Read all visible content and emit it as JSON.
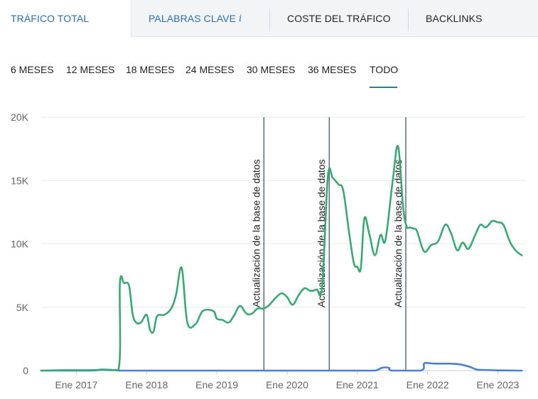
{
  "tabs": [
    {
      "label": "TRÁFICO TOTAL",
      "info": "",
      "active": true
    },
    {
      "label": "PALABRAS CLAVE",
      "info": "i",
      "active": false
    },
    {
      "label": "COSTE DEL TRÁFICO",
      "info": "",
      "active": false
    },
    {
      "label": "BACKLINKS",
      "info": "",
      "active": false
    }
  ],
  "periods": [
    "6 MESES",
    "12 MESES",
    "18 MESES",
    "24 MESES",
    "30 MESES",
    "36 MESES",
    "TODO"
  ],
  "selected_period": "TODO",
  "colors": {
    "accent": "#2d6fa6",
    "series_total": "#3aa876",
    "series_secondary": "#4b7fd6",
    "grid": "#e6e9ec",
    "annotation": "#3a4a5a"
  },
  "chart_data": {
    "type": "line",
    "title": "",
    "xlabel": "",
    "ylabel": "",
    "ylim": [
      0,
      20000
    ],
    "y_ticks": [
      0,
      5000,
      10000,
      15000,
      20000
    ],
    "y_tick_labels": [
      "0",
      "5K",
      "10K",
      "15K",
      "20K"
    ],
    "x_tick_labels": [
      "Ene 2017",
      "Ene 2018",
      "Ene 2019",
      "Ene 2020",
      "Ene 2021",
      "Ene 2022",
      "Ene 2023"
    ],
    "x_ticks": [
      2017.0,
      2018.0,
      2019.0,
      2020.0,
      2021.0,
      2022.0,
      2023.0
    ],
    "xlim": [
      2016.5,
      2023.4
    ],
    "grid": true,
    "annotations": [
      {
        "x": 2019.67,
        "label": "Actualización de la base de datos"
      },
      {
        "x": 2020.6,
        "label": "Actualización de la base de datos"
      },
      {
        "x": 2021.69,
        "label": "Actualización de la base de datos"
      }
    ],
    "series": [
      {
        "name": "",
        "color": "#3aa876",
        "x": [
          2016.5,
          2016.8,
          2017.1,
          2017.35,
          2017.6,
          2017.62,
          2017.68,
          2017.75,
          2017.8,
          2017.85,
          2017.92,
          2018.0,
          2018.05,
          2018.1,
          2018.15,
          2018.25,
          2018.35,
          2018.42,
          2018.5,
          2018.58,
          2018.7,
          2018.8,
          2018.95,
          2019.0,
          2019.08,
          2019.17,
          2019.25,
          2019.33,
          2019.42,
          2019.5,
          2019.58,
          2019.67,
          2019.75,
          2019.83,
          2019.92,
          2020.0,
          2020.08,
          2020.17,
          2020.25,
          2020.33,
          2020.42,
          2020.5,
          2020.58,
          2020.65,
          2020.73,
          2020.8,
          2020.88,
          2020.95,
          2021.0,
          2021.05,
          2021.1,
          2021.17,
          2021.25,
          2021.33,
          2021.4,
          2021.5,
          2021.58,
          2021.65,
          2021.7,
          2021.75,
          2021.8,
          2021.85,
          2021.95,
          2022.05,
          2022.15,
          2022.25,
          2022.33,
          2022.42,
          2022.5,
          2022.58,
          2022.67,
          2022.75,
          2022.83,
          2022.92,
          2023.0,
          2023.08,
          2023.17,
          2023.25,
          2023.34
        ],
        "values": [
          0,
          30,
          30,
          50,
          60,
          6900,
          6900,
          6700,
          4500,
          3800,
          3800,
          4400,
          3200,
          3100,
          4300,
          4400,
          4900,
          6000,
          8100,
          3800,
          3700,
          4700,
          4700,
          4100,
          4000,
          3800,
          4400,
          5100,
          4500,
          4500,
          4900,
          4900,
          5200,
          5700,
          6100,
          5800,
          5200,
          6000,
          6500,
          6300,
          6400,
          6700,
          15300,
          15200,
          14700,
          14200,
          11000,
          8500,
          8200,
          8100,
          12000,
          10800,
          9100,
          10700,
          10300,
          14800,
          17700,
          13000,
          11400,
          11300,
          11200,
          11000,
          9400,
          9900,
          10200,
          11500,
          10900,
          9500,
          10100,
          9600,
          10600,
          11500,
          11300,
          11800,
          11700,
          11500,
          10200,
          9500,
          9100
        ]
      },
      {
        "name": "",
        "color": "#4b7fd6",
        "x": [
          2016.5,
          2017.2,
          2017.35,
          2017.5,
          2017.6,
          2017.7,
          2018.0,
          2019.0,
          2020.0,
          2021.0,
          2021.25,
          2021.35,
          2021.45,
          2021.5,
          2021.9,
          2021.95,
          2022.0,
          2022.1,
          2022.3,
          2022.45,
          2022.6,
          2022.7,
          2022.8,
          2023.0,
          2023.34
        ],
        "values": [
          0,
          0,
          80,
          60,
          0,
          0,
          0,
          0,
          0,
          0,
          0,
          220,
          220,
          0,
          0,
          550,
          600,
          550,
          550,
          500,
          300,
          80,
          50,
          20,
          0
        ]
      }
    ]
  }
}
